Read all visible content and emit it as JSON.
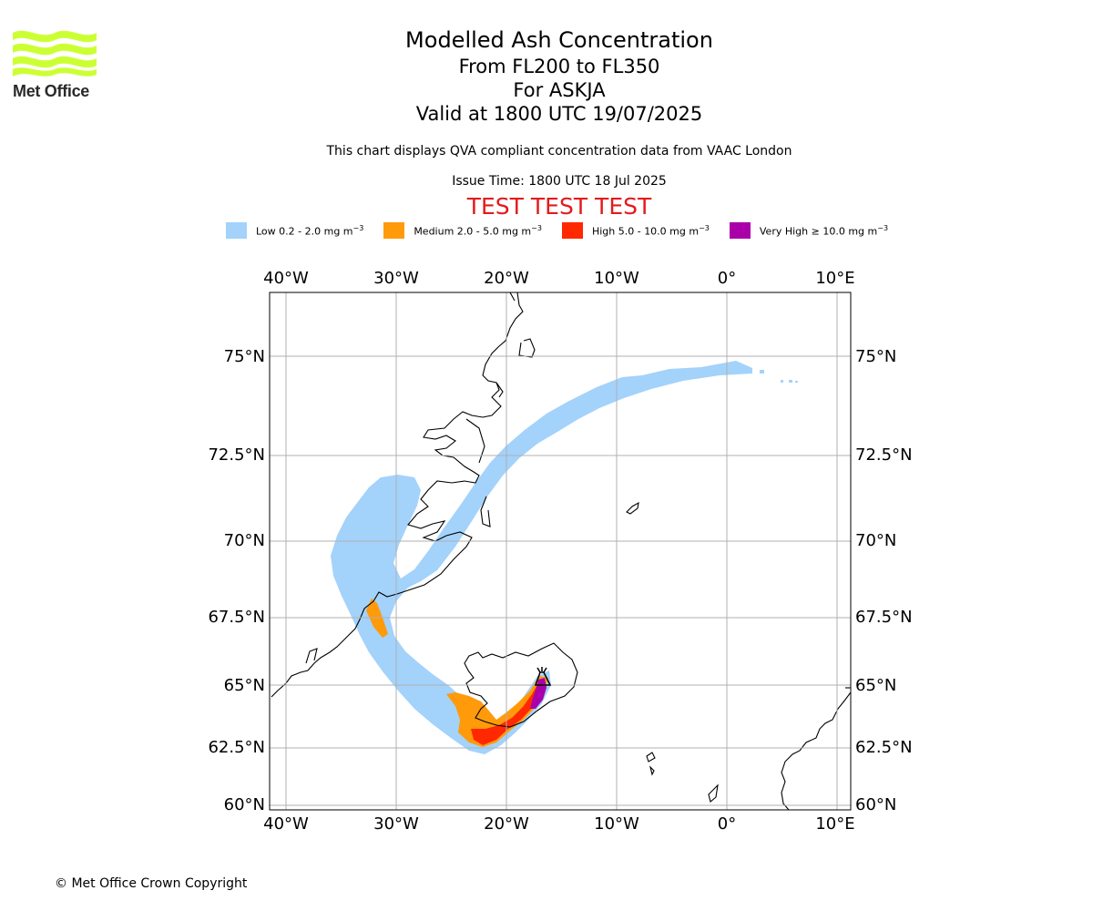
{
  "logo": {
    "text": "Met Office",
    "wave_color": "#ccff33"
  },
  "title": {
    "line1": "Modelled Ash Concentration",
    "line2": "From FL200 to FL350",
    "line3": "For ASKJA",
    "line4": "Valid at 1800 UTC 19/07/2025"
  },
  "subtitle": "This chart displays QVA compliant concentration data from VAAC London",
  "issue_time": "Issue Time: 1800 UTC 18 Jul 2025",
  "test_banner": "TEST TEST TEST",
  "legend": [
    {
      "label": "Low 0.2 - 2.0 mg m",
      "unit_exp": "−3",
      "color": "#a3d2fb"
    },
    {
      "label": "Medium 2.0 - 5.0 mg m",
      "unit_exp": "−3",
      "color": "#ff9a0a"
    },
    {
      "label": "High 5.0 - 10.0 mg m",
      "unit_exp": "−3",
      "color": "#ff2800"
    },
    {
      "label": "Very High ≥ 10.0 mg m",
      "unit_exp": "−3",
      "color": "#aa00aa"
    }
  ],
  "map": {
    "lon_ticks": [
      "40°W",
      "30°W",
      "20°W",
      "10°W",
      "0°",
      "10°E"
    ],
    "lat_ticks": [
      "75°N",
      "72.5°N",
      "70°N",
      "67.5°N",
      "65°N",
      "62.5°N",
      "60°N"
    ],
    "volcano": "ASKJA",
    "grid": true
  },
  "copyright": "© Met Office Crown Copyright"
}
